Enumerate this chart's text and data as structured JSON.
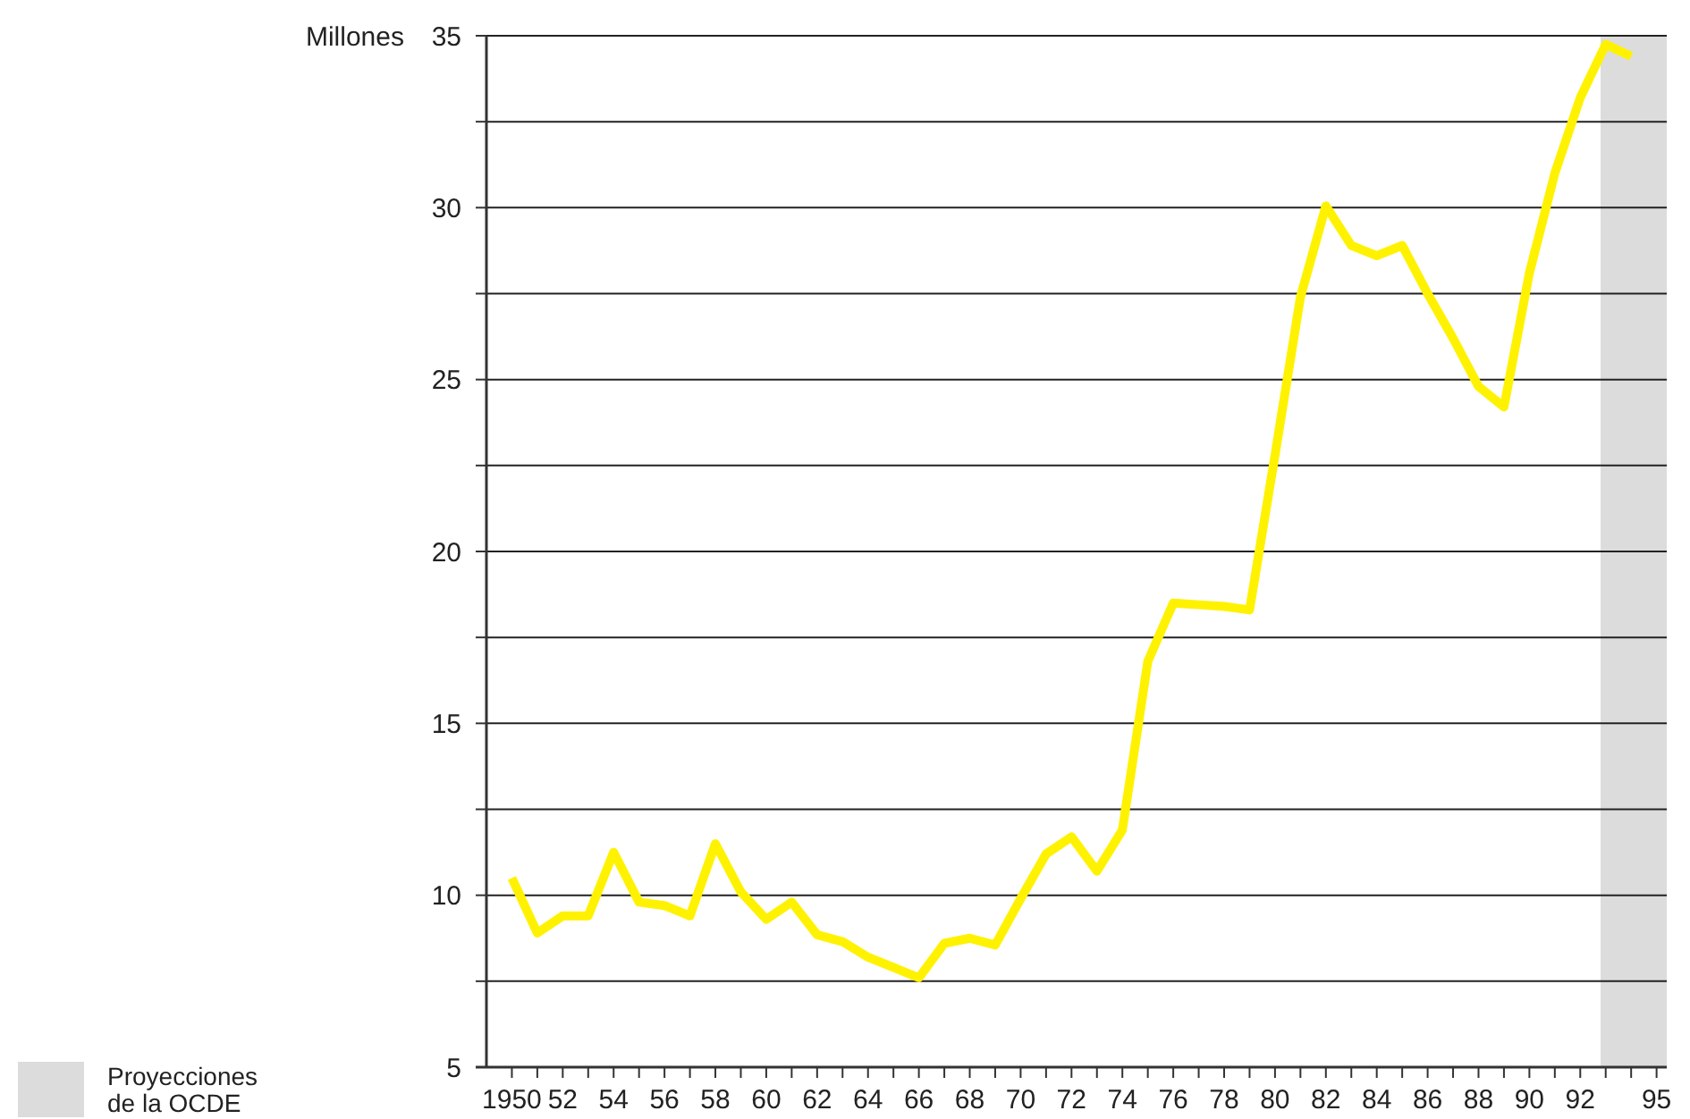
{
  "chart_data": {
    "type": "line",
    "ylabel": "Millones",
    "x": [
      1950,
      1951,
      1952,
      1953,
      1954,
      1955,
      1956,
      1957,
      1958,
      1959,
      1960,
      1961,
      1962,
      1963,
      1964,
      1965,
      1966,
      1967,
      1968,
      1969,
      1970,
      1971,
      1972,
      1973,
      1974,
      1975,
      1976,
      1977,
      1978,
      1979,
      1980,
      1981,
      1982,
      1983,
      1984,
      1985,
      1986,
      1987,
      1988,
      1989,
      1990,
      1991,
      1992,
      1993,
      1994
    ],
    "series": [
      {
        "color": "#fff200",
        "values": [
          10.5,
          8.9,
          9.4,
          9.4,
          11.25,
          9.8,
          9.7,
          9.4,
          11.5,
          10.1,
          9.3,
          9.8,
          8.85,
          8.65,
          8.2,
          7.9,
          7.6,
          8.6,
          8.75,
          8.55,
          9.9,
          11.2,
          11.7,
          10.7,
          11.9,
          16.8,
          18.5,
          18.45,
          18.4,
          18.3,
          22.8,
          27.4,
          30.05,
          28.9,
          28.6,
          28.9,
          27.5,
          26.2,
          24.8,
          24.2,
          28.1,
          31.0,
          33.2,
          34.75,
          34.4
        ]
      }
    ],
    "xlim": [
      1949,
      1995.4
    ],
    "xticks": [
      1950,
      {
        "value": 1951,
        "label": null
      },
      {
        "value": 1952,
        "label": "52"
      },
      {
        "value": 1953,
        "label": null
      },
      {
        "value": 1954,
        "label": "54"
      },
      {
        "value": 1955,
        "label": null
      },
      {
        "value": 1956,
        "label": "56"
      },
      {
        "value": 1957,
        "label": null
      },
      {
        "value": 1958,
        "label": "58"
      },
      {
        "value": 1959,
        "label": null
      },
      {
        "value": 1960,
        "label": "60"
      },
      {
        "value": 1961,
        "label": null
      },
      {
        "value": 1962,
        "label": "62"
      },
      {
        "value": 1963,
        "label": null
      },
      {
        "value": 1964,
        "label": "64"
      },
      {
        "value": 1965,
        "label": null
      },
      {
        "value": 1966,
        "label": "66"
      },
      {
        "value": 1967,
        "label": null
      },
      {
        "value": 1968,
        "label": "68"
      },
      {
        "value": 1969,
        "label": null
      },
      {
        "value": 1970,
        "label": "70"
      },
      {
        "value": 1971,
        "label": null
      },
      {
        "value": 1972,
        "label": "72"
      },
      {
        "value": 1973,
        "label": null
      },
      {
        "value": 1974,
        "label": "74"
      },
      {
        "value": 1975,
        "label": null
      },
      {
        "value": 1976,
        "label": "76"
      },
      {
        "value": 1977,
        "label": null
      },
      {
        "value": 1978,
        "label": "78"
      },
      {
        "value": 1979,
        "label": null
      },
      {
        "value": 1980,
        "label": "80"
      },
      {
        "value": 1981,
        "label": null
      },
      {
        "value": 1982,
        "label": "82"
      },
      {
        "value": 1983,
        "label": null
      },
      {
        "value": 1984,
        "label": "84"
      },
      {
        "value": 1985,
        "label": null
      },
      {
        "value": 1986,
        "label": "86"
      },
      {
        "value": 1987,
        "label": null
      },
      {
        "value": 1988,
        "label": "88"
      },
      {
        "value": 1989,
        "label": null
      },
      {
        "value": 1990,
        "label": "90"
      },
      {
        "value": 1991,
        "label": null
      },
      {
        "value": 1992,
        "label": "92"
      },
      {
        "value": 1993,
        "label": null
      },
      {
        "value": 1994,
        "label": null
      },
      {
        "value": 1995,
        "label": "95"
      }
    ],
    "ylim": [
      5,
      35
    ],
    "yticks": [
      5,
      {
        "value": 7.5,
        "label": null
      },
      10,
      {
        "value": 12.5,
        "label": null
      },
      15,
      {
        "value": 17.5,
        "label": null
      },
      20,
      {
        "value": 22.5,
        "label": null
      },
      25,
      {
        "value": 27.5,
        "label": null
      },
      30,
      {
        "value": 32.5,
        "label": null
      },
      35
    ],
    "grid": "y",
    "bands": [
      {
        "axis": "x",
        "from": 1992.8,
        "to": 1995.4,
        "label": "Proyecciones de la OCDE",
        "color": "#dcdcdd"
      }
    ],
    "legend": "bottom left",
    "line_style": "solid"
  }
}
